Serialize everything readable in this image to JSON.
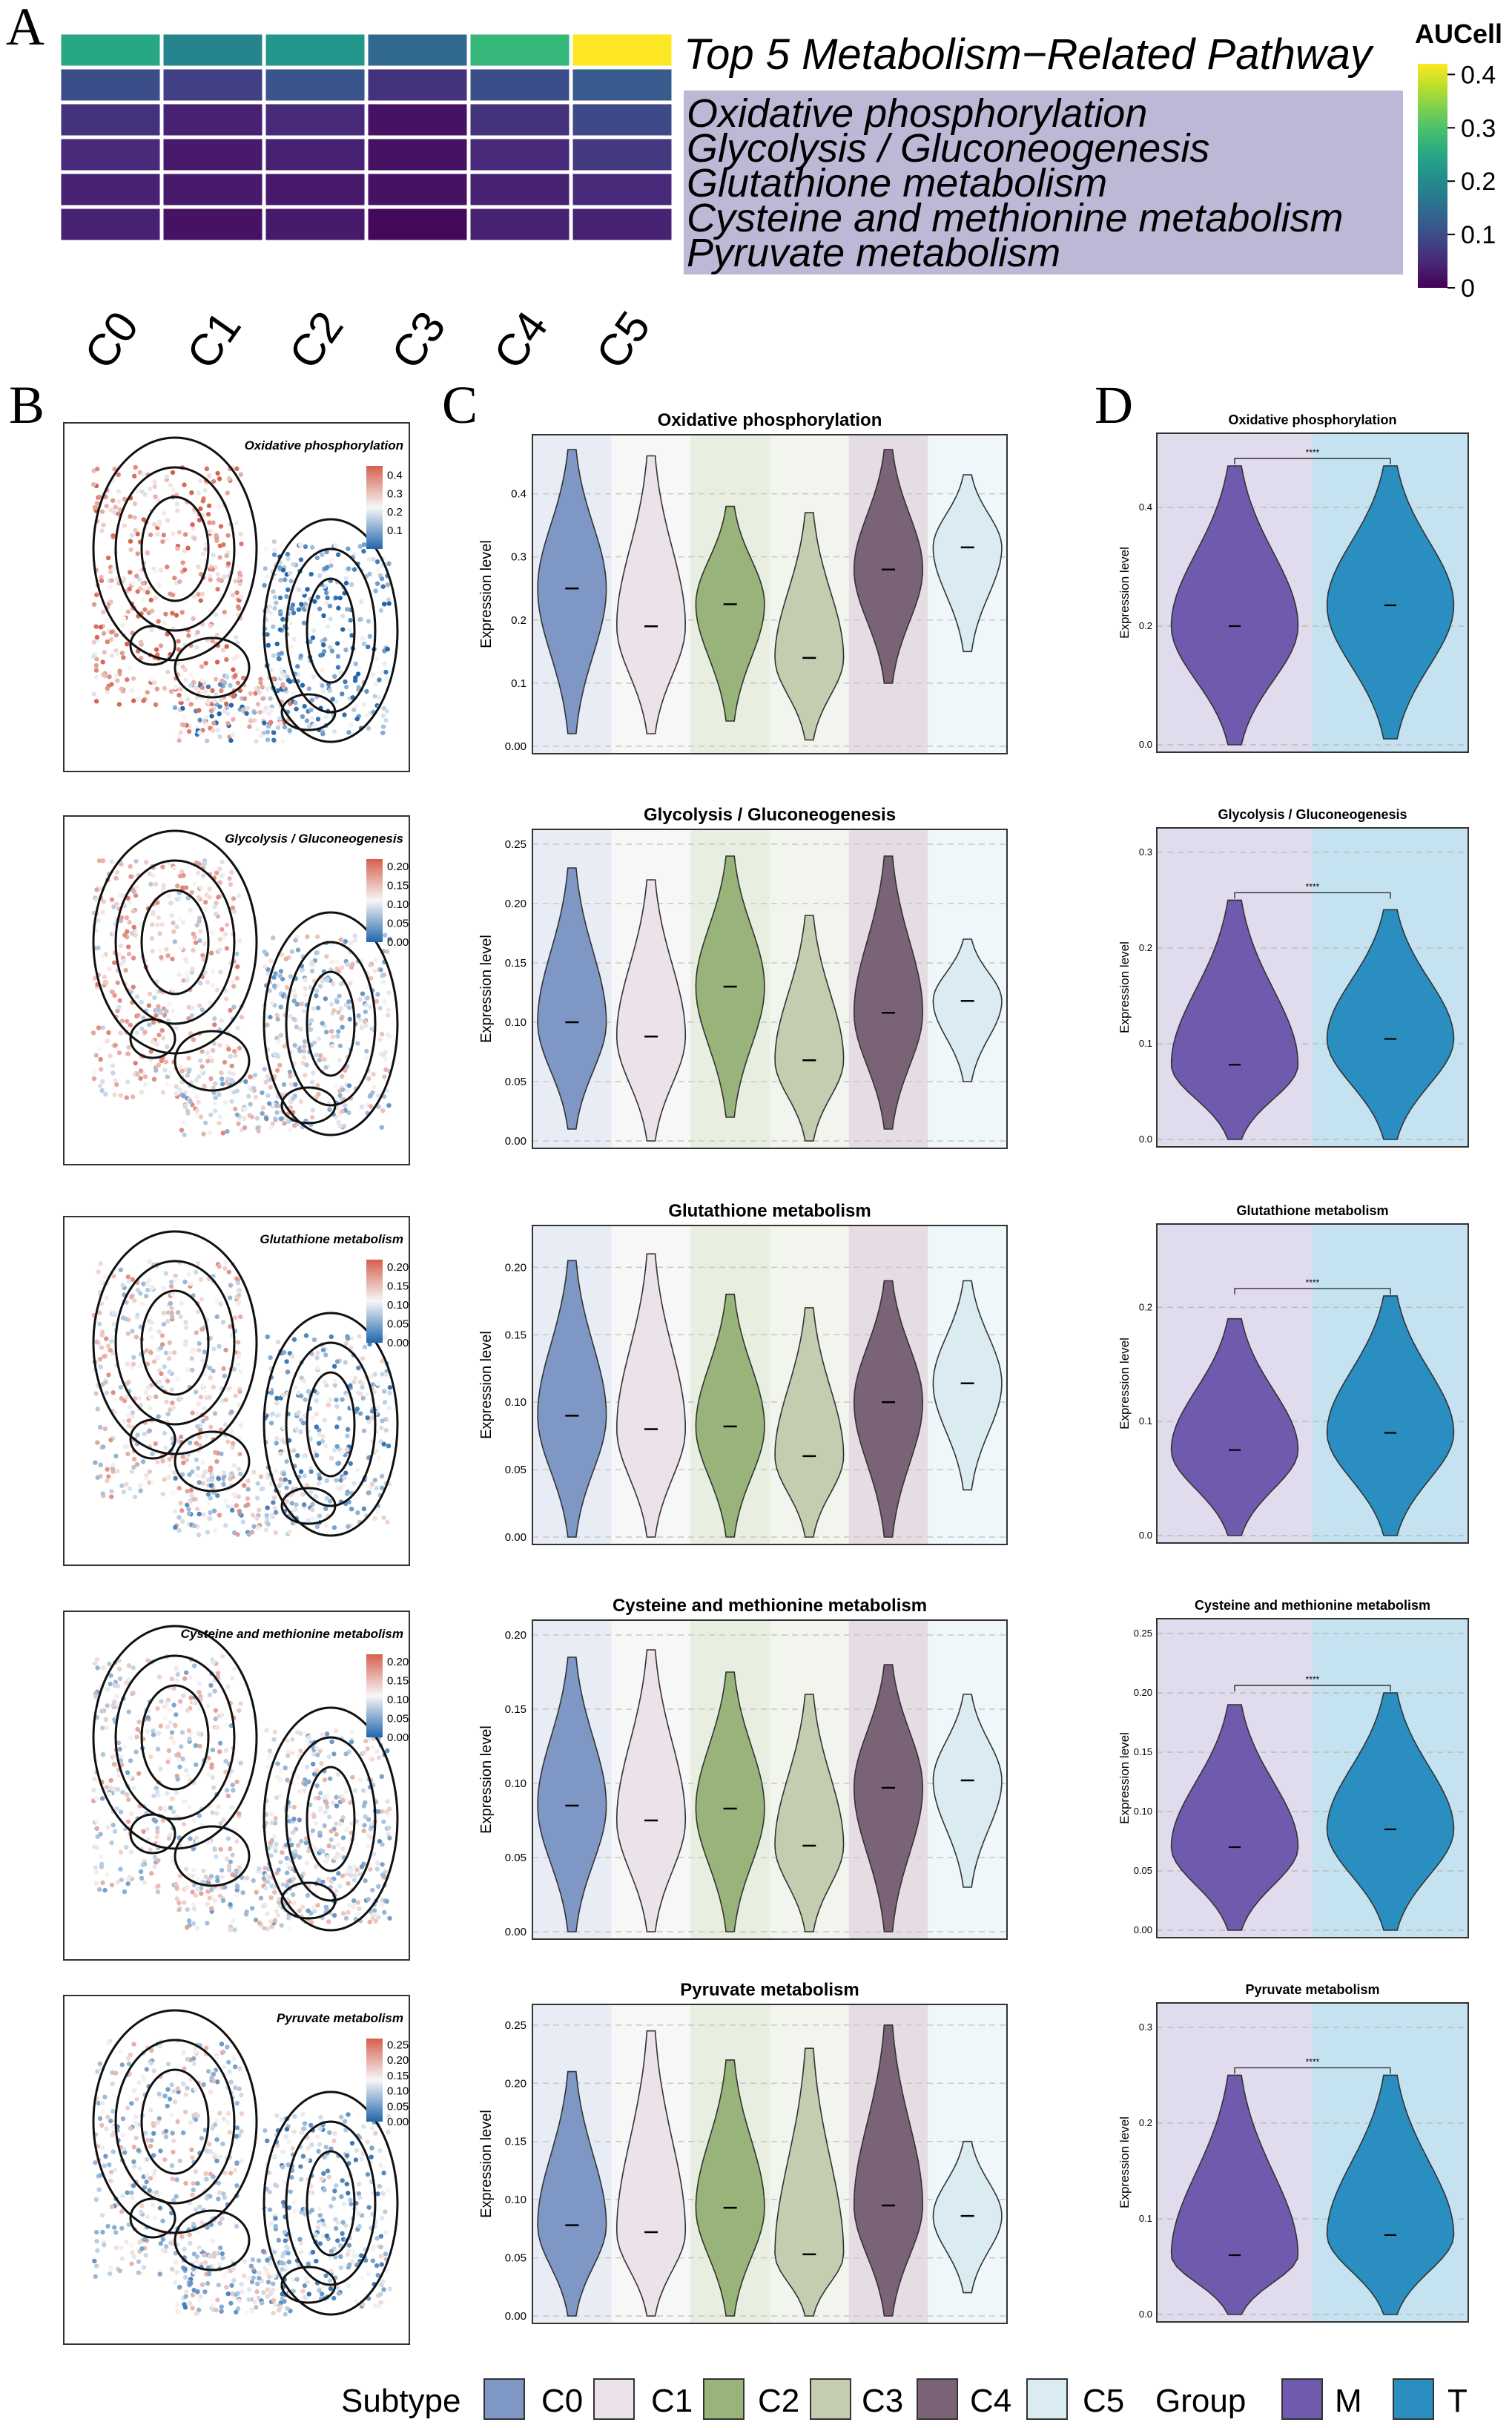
{
  "panel_letters": [
    "A",
    "B",
    "C",
    "D"
  ],
  "heatmap": {
    "title": "Top 5 Metabolism−Related Pathway",
    "columns": [
      "C0",
      "C1",
      "C2",
      "C3",
      "C4",
      "C5"
    ],
    "rows": [
      "Oxidative phosphorylation",
      "Glycolysis / Gluconeogenesis",
      "Glutathione metabolism",
      "Cysteine and methionine metabolism",
      "Pyruvate metabolism"
    ],
    "colorbar_title": "AUCell",
    "colorbar_ticks": [
      "0.4",
      "0.3",
      "0.2",
      "0.1",
      "0"
    ],
    "label_band_color": "#bcb8d6"
  },
  "umap_panels": [
    {
      "title": "Oxidative phosphorylation",
      "ticks": [
        "0.4",
        "0.3",
        "0.2",
        "0.1"
      ]
    },
    {
      "title": "Glycolysis / Gluconeogenesis",
      "ticks": [
        "0.20",
        "0.15",
        "0.10",
        "0.05",
        "0.00"
      ]
    },
    {
      "title": "Glutathione metabolism",
      "ticks": [
        "0.20",
        "0.15",
        "0.10",
        "0.05",
        "0.00"
      ]
    },
    {
      "title": "Cysteine and methionine metabolism",
      "ticks": [
        "0.20",
        "0.15",
        "0.10",
        "0.05",
        "0.00"
      ]
    },
    {
      "title": "Pyruvate metabolism",
      "ticks": [
        "0.25",
        "0.20",
        "0.15",
        "0.10",
        "0.05",
        "0.00"
      ]
    }
  ],
  "violin_ylabel": "Expression level",
  "significance_label": "****",
  "legend": {
    "subtype_title": "Subtype",
    "subtypes": [
      "C0",
      "C1",
      "C2",
      "C3",
      "C4",
      "C5"
    ],
    "subtype_colors": [
      "#7e97c4",
      "#ece2ea",
      "#98b47a",
      "#c4cdb0",
      "#7a6377",
      "#daebf2"
    ],
    "group_title": "Group",
    "groups": [
      "M",
      "T"
    ],
    "group_colors": [
      "#6f5aad",
      "#2a8ec0"
    ]
  },
  "chart_data": [
    {
      "type": "heatmap",
      "title": "Top 5 Metabolism−Related Pathway",
      "x": [
        "C0",
        "C1",
        "C2",
        "C3",
        "C4",
        "C5"
      ],
      "y": [
        "Top 5 Metabolism−Related Pathway",
        "Oxidative phosphorylation",
        "Glycolysis / Gluconeogenesis",
        "Glutathione metabolism",
        "Cysteine and methionine metabolism",
        "Pyruvate metabolism"
      ],
      "values": [
        [
          0.25,
          0.19,
          0.22,
          0.14,
          0.28,
          0.42
        ],
        [
          0.1,
          0.08,
          0.11,
          0.06,
          0.1,
          0.12
        ],
        [
          0.06,
          0.04,
          0.05,
          0.02,
          0.06,
          0.09
        ],
        [
          0.05,
          0.03,
          0.04,
          0.02,
          0.05,
          0.07
        ],
        [
          0.04,
          0.03,
          0.03,
          0.02,
          0.04,
          0.05
        ],
        [
          0.04,
          0.02,
          0.03,
          0.01,
          0.04,
          0.04
        ]
      ],
      "colorbar_label": "AUCell",
      "zlim": [
        0,
        0.42
      ]
    },
    {
      "type": "violin",
      "title": "Oxidative phosphorylation",
      "categories": [
        "C0",
        "C1",
        "C2",
        "C3",
        "C4",
        "C5"
      ],
      "medians": [
        0.25,
        0.19,
        0.225,
        0.14,
        0.28,
        0.315
      ],
      "ranges": [
        [
          0.02,
          0.47
        ],
        [
          0.02,
          0.46
        ],
        [
          0.04,
          0.38
        ],
        [
          0.01,
          0.37
        ],
        [
          0.1,
          0.47
        ],
        [
          0.15,
          0.43
        ]
      ],
      "ylabel": "Expression level",
      "ylim": [
        0,
        0.47
      ],
      "yticks": [
        0,
        0.1,
        0.2,
        0.3,
        0.4
      ]
    },
    {
      "type": "violin",
      "title": "Glycolysis / Gluconeogenesis",
      "categories": [
        "C0",
        "C1",
        "C2",
        "C3",
        "C4",
        "C5"
      ],
      "medians": [
        0.1,
        0.088,
        0.13,
        0.068,
        0.108,
        0.118
      ],
      "ranges": [
        [
          0.01,
          0.23
        ],
        [
          0.0,
          0.22
        ],
        [
          0.02,
          0.24
        ],
        [
          0.0,
          0.19
        ],
        [
          0.01,
          0.24
        ],
        [
          0.05,
          0.17
        ]
      ],
      "ylabel": "Expression level",
      "ylim": [
        0,
        0.25
      ],
      "yticks": [
        0,
        0.05,
        0.1,
        0.15,
        0.2,
        0.25
      ]
    },
    {
      "type": "violin",
      "title": "Glutathione metabolism",
      "categories": [
        "C0",
        "C1",
        "C2",
        "C3",
        "C4",
        "C5"
      ],
      "medians": [
        0.09,
        0.08,
        0.082,
        0.06,
        0.1,
        0.114
      ],
      "ranges": [
        [
          0.0,
          0.205
        ],
        [
          0.0,
          0.21
        ],
        [
          0.0,
          0.18
        ],
        [
          0.0,
          0.17
        ],
        [
          0.0,
          0.19
        ],
        [
          0.035,
          0.19
        ]
      ],
      "ylabel": "Expression level",
      "ylim": [
        0,
        0.22
      ],
      "yticks": [
        0,
        0.05,
        0.1,
        0.15,
        0.2
      ]
    },
    {
      "type": "violin",
      "title": "Cysteine and methionine metabolism",
      "categories": [
        "C0",
        "C1",
        "C2",
        "C3",
        "C4",
        "C5"
      ],
      "medians": [
        0.085,
        0.075,
        0.083,
        0.058,
        0.097,
        0.102
      ],
      "ranges": [
        [
          0.0,
          0.185
        ],
        [
          0.0,
          0.19
        ],
        [
          0.0,
          0.175
        ],
        [
          0.0,
          0.16
        ],
        [
          0.0,
          0.18
        ],
        [
          0.03,
          0.16
        ]
      ],
      "ylabel": "Expression level",
      "ylim": [
        0,
        0.2
      ],
      "yticks": [
        0,
        0.05,
        0.1,
        0.15,
        0.2
      ]
    },
    {
      "type": "violin",
      "title": "Pyruvate metabolism",
      "categories": [
        "C0",
        "C1",
        "C2",
        "C3",
        "C4",
        "C5"
      ],
      "medians": [
        0.078,
        0.072,
        0.093,
        0.053,
        0.095,
        0.086
      ],
      "ranges": [
        [
          0.0,
          0.21
        ],
        [
          0.0,
          0.245
        ],
        [
          0.0,
          0.22
        ],
        [
          0.0,
          0.23
        ],
        [
          0.0,
          0.25
        ],
        [
          0.02,
          0.15
        ]
      ],
      "ylabel": "Expression level",
      "ylim": [
        0,
        0.255
      ],
      "yticks": [
        0,
        0.05,
        0.1,
        0.15,
        0.2,
        0.25
      ]
    },
    {
      "type": "violin",
      "title": "Oxidative phosphorylation",
      "categories": [
        "M",
        "T"
      ],
      "medians": [
        0.2,
        0.235
      ],
      "ranges": [
        [
          0.0,
          0.47
        ],
        [
          0.01,
          0.47
        ]
      ],
      "ylabel": "Expression level",
      "ylim": [
        0,
        0.5
      ],
      "yticks": [
        0,
        0.2,
        0.4
      ],
      "significance": "****"
    },
    {
      "type": "violin",
      "title": "Glycolysis / Gluconeogenesis",
      "categories": [
        "M",
        "T"
      ],
      "medians": [
        0.078,
        0.105
      ],
      "ranges": [
        [
          0.0,
          0.25
        ],
        [
          0.0,
          0.24
        ]
      ],
      "ylabel": "Expression level",
      "ylim": [
        0,
        0.31
      ],
      "yticks": [
        0,
        0.1,
        0.2,
        0.3
      ],
      "significance": "****"
    },
    {
      "type": "violin",
      "title": "Glutathione metabolism",
      "categories": [
        "M",
        "T"
      ],
      "medians": [
        0.075,
        0.09
      ],
      "ranges": [
        [
          0.0,
          0.19
        ],
        [
          0.0,
          0.21
        ]
      ],
      "ylabel": "Expression level",
      "ylim": [
        0,
        0.26
      ],
      "yticks": [
        0,
        0.1,
        0.2
      ],
      "significance": "****"
    },
    {
      "type": "violin",
      "title": "Cysteine and methionine metabolism",
      "categories": [
        "M",
        "T"
      ],
      "medians": [
        0.07,
        0.085
      ],
      "ranges": [
        [
          0.0,
          0.19
        ],
        [
          0.0,
          0.2
        ]
      ],
      "ylabel": "Expression level",
      "ylim": [
        0,
        0.25
      ],
      "yticks": [
        0,
        0.05,
        0.1,
        0.15,
        0.2,
        0.25
      ],
      "significance": "****"
    },
    {
      "type": "violin",
      "title": "Pyruvate metabolism",
      "categories": [
        "M",
        "T"
      ],
      "medians": [
        0.062,
        0.083
      ],
      "ranges": [
        [
          0.0,
          0.25
        ],
        [
          0.0,
          0.25
        ]
      ],
      "ylabel": "Expression level",
      "ylim": [
        0,
        0.31
      ],
      "yticks": [
        0,
        0.1,
        0.2,
        0.3
      ],
      "significance": "****"
    }
  ]
}
